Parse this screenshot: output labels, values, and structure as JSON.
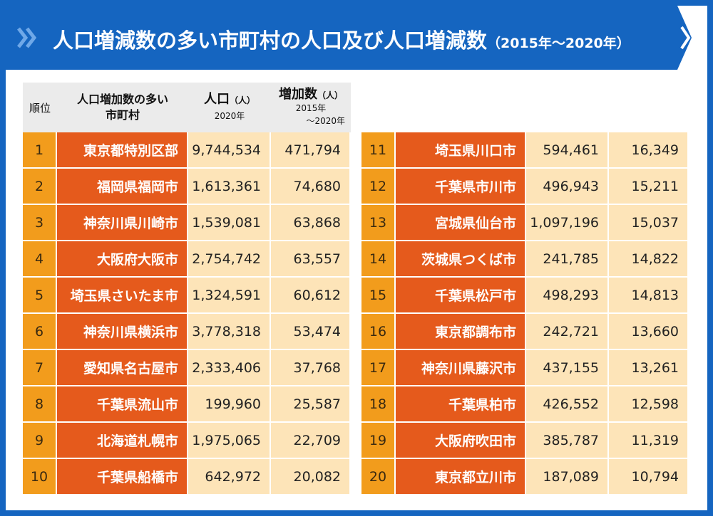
{
  "title": {
    "main": "人口増減数の多い市町村の人口及び人口増減数",
    "sub": "（2015年〜2020年）"
  },
  "colors": {
    "banner": "#1565c0",
    "rank": "#f29c1c",
    "city": "#e55a1c",
    "value": "#fde4b8",
    "header": "#ebebeb"
  },
  "headers": {
    "rank": "順位",
    "city_line1": "人口増加数の多い",
    "city_line2": "市町村",
    "pop_main": "人口",
    "pop_unit": "（人）",
    "pop_year": "2020年",
    "inc_main": "増加数",
    "inc_unit": "（人）",
    "inc_year1": "2015年",
    "inc_year2": "〜2020年"
  },
  "chart_data": {
    "type": "table",
    "columns": [
      "順位",
      "人口増加数の多い市町村",
      "人口（人）2020年",
      "増加数（人）2015年〜2020年"
    ],
    "rows": [
      {
        "rank": "1",
        "city": "東京都特別区部",
        "population": "9,744,534",
        "increase": "471,794"
      },
      {
        "rank": "2",
        "city": "福岡県福岡市",
        "population": "1,613,361",
        "increase": "74,680"
      },
      {
        "rank": "3",
        "city": "神奈川県川崎市",
        "population": "1,539,081",
        "increase": "63,868"
      },
      {
        "rank": "4",
        "city": "大阪府大阪市",
        "population": "2,754,742",
        "increase": "63,557"
      },
      {
        "rank": "5",
        "city": "埼玉県さいたま市",
        "population": "1,324,591",
        "increase": "60,612"
      },
      {
        "rank": "6",
        "city": "神奈川県横浜市",
        "population": "3,778,318",
        "increase": "53,474"
      },
      {
        "rank": "7",
        "city": "愛知県名古屋市",
        "population": "2,333,406",
        "increase": "37,768"
      },
      {
        "rank": "8",
        "city": "千葉県流山市",
        "population": "199,960",
        "increase": "25,587"
      },
      {
        "rank": "9",
        "city": "北海道札幌市",
        "population": "1,975,065",
        "increase": "22,709"
      },
      {
        "rank": "10",
        "city": "千葉県船橋市",
        "population": "642,972",
        "increase": "20,082"
      },
      {
        "rank": "11",
        "city": "埼玉県川口市",
        "population": "594,461",
        "increase": "16,349"
      },
      {
        "rank": "12",
        "city": "千葉県市川市",
        "population": "496,943",
        "increase": "15,211"
      },
      {
        "rank": "13",
        "city": "宮城県仙台市",
        "population": "1,097,196",
        "increase": "15,037"
      },
      {
        "rank": "14",
        "city": "茨城県つくば市",
        "population": "241,785",
        "increase": "14,822"
      },
      {
        "rank": "15",
        "city": "千葉県松戸市",
        "population": "498,293",
        "increase": "14,813"
      },
      {
        "rank": "16",
        "city": "東京都調布市",
        "population": "242,721",
        "increase": "13,660"
      },
      {
        "rank": "17",
        "city": "神奈川県藤沢市",
        "population": "437,155",
        "increase": "13,261"
      },
      {
        "rank": "18",
        "city": "千葉県柏市",
        "population": "426,552",
        "increase": "12,598"
      },
      {
        "rank": "19",
        "city": "大阪府吹田市",
        "population": "385,787",
        "increase": "11,319"
      },
      {
        "rank": "20",
        "city": "東京都立川市",
        "population": "187,089",
        "increase": "10,794"
      }
    ]
  }
}
